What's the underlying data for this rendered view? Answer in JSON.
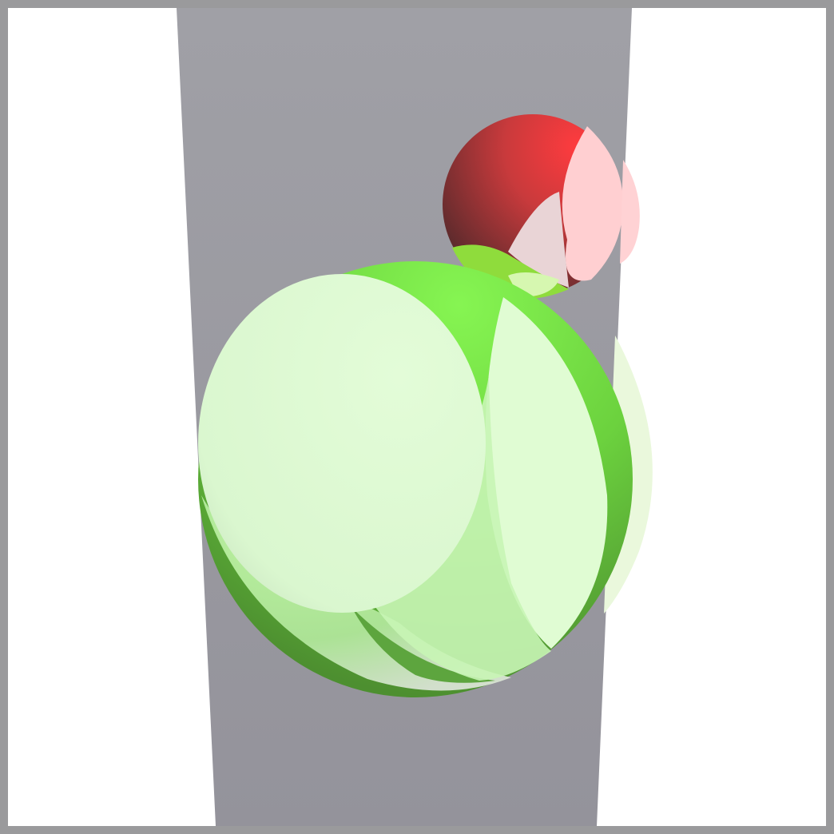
{
  "scene": {
    "objects": [
      {
        "kind": "plane",
        "name": "grey-wall-slab",
        "color": "#95949c"
      },
      {
        "kind": "sphere",
        "name": "green-sphere",
        "color": "#7ef04a"
      },
      {
        "kind": "sphere",
        "name": "red-sphere",
        "color": "#ef3a3c"
      }
    ],
    "clip_cut_color_green": "#e2fbd6",
    "clip_cut_color_red": "#ffd0d2",
    "frame_color": "#9a9a9c",
    "background_color": "#ffffff"
  }
}
